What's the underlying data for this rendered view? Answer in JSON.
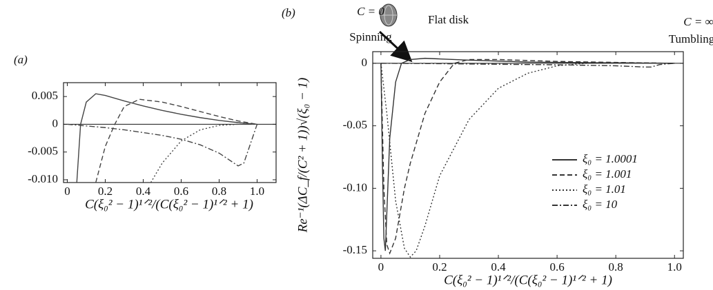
{
  "chart_data": [
    {
      "type": "line",
      "panel_label": "(a)",
      "x_label": "C(ξ₀² − 1)¹ᐟ²/(C(ξ₀² − 1)¹ᐟ² + 1)",
      "xlim": [
        -0.02,
        1.1
      ],
      "ylim": [
        -0.0105,
        0.0075
      ],
      "xticks": [
        0,
        0.2,
        0.4,
        0.6,
        0.8,
        {
          "value": 1,
          "label": "1.0"
        }
      ],
      "yticks": [
        0.005,
        0,
        -0.005,
        {
          "value": -0.01,
          "label": "-0.010"
        }
      ],
      "zero_line": true,
      "series": [
        {
          "color": "#444444",
          "style": "solid",
          "x": [
            0.05,
            0.07,
            0.1,
            0.15,
            0.2,
            0.3,
            0.4,
            0.5,
            0.6,
            0.7,
            0.8,
            0.9,
            1.0
          ],
          "values": [
            -0.0105,
            0,
            0.004,
            0.0055,
            0.0052,
            0.0042,
            0.0033,
            0.0025,
            0.0018,
            0.0012,
            0.0007,
            0.0003,
            0
          ]
        },
        {
          "color": "#444444",
          "style": "dashed",
          "x": [
            0.15,
            0.2,
            0.25,
            0.3,
            0.38,
            0.5,
            0.6,
            0.7,
            0.8,
            0.9,
            1.0
          ],
          "values": [
            -0.0105,
            -0.004,
            0,
            0.0032,
            0.0045,
            0.004,
            0.0032,
            0.0023,
            0.0014,
            0.0006,
            0
          ]
        },
        {
          "color": "#444444",
          "style": "dotted",
          "x": [
            0.44,
            0.5,
            0.6,
            0.7,
            0.8,
            0.9,
            1.0
          ],
          "values": [
            -0.0105,
            -0.007,
            -0.003,
            -0.001,
            -0.0002,
            0,
            0
          ]
        },
        {
          "color": "#444444",
          "style": "dashdot",
          "x": [
            0,
            0.1,
            0.2,
            0.3,
            0.4,
            0.5,
            0.6,
            0.7,
            0.8,
            0.9,
            0.93,
            0.96,
            1.0
          ],
          "values": [
            0,
            -0.0003,
            -0.0006,
            -0.001,
            -0.0015,
            -0.002,
            -0.0027,
            -0.0037,
            -0.0052,
            -0.0075,
            -0.007,
            -0.004,
            0
          ]
        }
      ]
    },
    {
      "type": "line",
      "panel_label": "(b)",
      "x_label": "C(ξ₀² − 1)¹ᐟ²/(C(ξ₀² − 1)¹ᐟ² + 1)",
      "y_label": "Re⁻¹(ΔC_f/(C² + 1))√(ξ₀ − 1)",
      "annotations": [
        "C = 0",
        "Spinning",
        "Flat disk",
        "C = ∞",
        "Tumbling"
      ],
      "xlim": [
        -0.028,
        1.03
      ],
      "ylim": [
        -0.156,
        0.0093
      ],
      "xticks": [
        0,
        0.2,
        0.4,
        0.6,
        0.8,
        {
          "value": 1,
          "label": "1.0"
        }
      ],
      "yticks": [
        0,
        -0.05,
        {
          "value": -0.1,
          "label": "-0.10"
        },
        -0.15
      ],
      "zero_line": true,
      "legend": "lower right",
      "series": [
        {
          "name": "ξ₀ = 1.0001",
          "color": "#333333",
          "style": "solid",
          "x": [
            0,
            0.005,
            0.01,
            0.015,
            0.02,
            0.03,
            0.05,
            0.07,
            0.1,
            0.15,
            0.2,
            0.3,
            0.5,
            0.7,
            1.0
          ],
          "values": [
            0,
            -0.08,
            -0.14,
            -0.15,
            -0.12,
            -0.06,
            -0.015,
            0,
            0.003,
            0.004,
            0.0035,
            0.0025,
            0.001,
            0.0005,
            0
          ]
        },
        {
          "name": "ξ₀ = 1.001",
          "color": "#333333",
          "style": "dashed",
          "x": [
            0,
            0.01,
            0.02,
            0.03,
            0.05,
            0.08,
            0.1,
            0.15,
            0.2,
            0.25,
            0.3,
            0.4,
            0.6,
            0.8,
            1.0
          ],
          "values": [
            0,
            -0.1,
            -0.145,
            -0.152,
            -0.14,
            -0.1,
            -0.08,
            -0.04,
            -0.015,
            0,
            0.003,
            0.003,
            0.0015,
            0.0007,
            0
          ]
        },
        {
          "name": "ξ₀ = 1.01",
          "color": "#333333",
          "style": "dotted",
          "x": [
            0,
            0.02,
            0.05,
            0.08,
            0.1,
            0.12,
            0.15,
            0.2,
            0.3,
            0.4,
            0.5,
            0.6,
            0.7,
            0.8,
            1.0
          ],
          "values": [
            0,
            -0.04,
            -0.11,
            -0.148,
            -0.155,
            -0.15,
            -0.13,
            -0.09,
            -0.045,
            -0.02,
            -0.008,
            -0.002,
            0,
            0.0005,
            0
          ]
        },
        {
          "name": "ξ₀ = 10",
          "color": "#333333",
          "style": "dashdot",
          "x": [
            0,
            0.2,
            0.4,
            0.6,
            0.8,
            0.9,
            0.92,
            0.95,
            1.0
          ],
          "values": [
            0,
            -0.0003,
            -0.0008,
            -0.0012,
            -0.002,
            -0.003,
            -0.003,
            -0.001,
            0
          ]
        }
      ]
    }
  ]
}
